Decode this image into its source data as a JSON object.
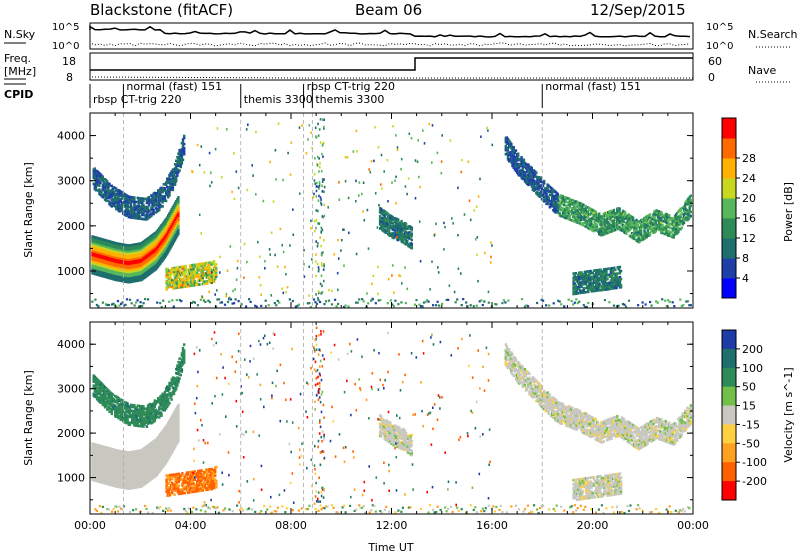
{
  "header": {
    "station": "Blackstone (fitACF)",
    "beam": "Beam 06",
    "date": "12/Sep/2015"
  },
  "top_panels": {
    "nsky_label": "N.Sky",
    "nsky_ticks": [
      "10^5",
      "10^0"
    ],
    "nsearch_label": "N.Search",
    "freq_label": "Freq.",
    "freq_unit": "[MHz]",
    "freq_ticks": [
      "18",
      "8"
    ],
    "nave_label": "Nave",
    "nave_ticks": [
      "60",
      "0"
    ],
    "cpid_label": "CPID",
    "cpid_segments": [
      {
        "label": "rbsp CT-trig 220",
        "start": 0.0
      },
      {
        "label": "normal (fast) 151",
        "start": 1.33
      },
      {
        "label": "themis 3300",
        "start": 6.0
      },
      {
        "label": "rbsp CT-trig 220",
        "start": 8.5
      },
      {
        "label": "themis 3300",
        "start": 8.85
      },
      {
        "label": "normal (fast) 151",
        "start": 18.0
      }
    ]
  },
  "chart_data": [
    {
      "type": "heatmap",
      "title": "",
      "xlabel": "",
      "ylabel": "Slant Range [km]",
      "xlim": [
        0,
        24
      ],
      "ylim": [
        180,
        4500
      ],
      "yticks": [
        "1000",
        "2000",
        "3000",
        "4000"
      ],
      "colorbar": {
        "label": "Power [dB]",
        "ticks": [
          "4",
          "8",
          "12",
          "16",
          "20",
          "24",
          "28"
        ],
        "range": [
          0,
          30
        ],
        "colors": [
          "#0000ff",
          "#1f3fa8",
          "#1e6e6e",
          "#2e8b57",
          "#57b75a",
          "#c8d820",
          "#ffb000",
          "#ff6a00",
          "#ff0000"
        ]
      },
      "features": [
        {
          "name": "band",
          "t": [
            0.05,
            1.0,
            1.5,
            2.0,
            2.6,
            3.0,
            3.5
          ],
          "r": [
            1400,
            1250,
            1200,
            1250,
            1500,
            1800,
            2300
          ],
          "value": 26
        },
        {
          "name": "upper-arc",
          "t": [
            0.1,
            0.8,
            1.5,
            2.2,
            2.8,
            3.3,
            3.7
          ],
          "r": [
            3100,
            2700,
            2450,
            2400,
            2650,
            3100,
            3800
          ],
          "value": 8
        },
        {
          "name": "patch-4h",
          "t": [
            3.0,
            3.6,
            4.2,
            4.8,
            5.0
          ],
          "r": [
            850,
            900,
            950,
            1000,
            1050
          ],
          "value": 20
        },
        {
          "name": "patch-12h",
          "t": [
            11.5,
            12.0,
            12.4,
            12.8
          ],
          "r": [
            2200,
            2000,
            1900,
            1750
          ],
          "value": 10
        },
        {
          "name": "arc-17h",
          "t": [
            16.5,
            17.0,
            17.6,
            18.2,
            18.6
          ],
          "r": [
            3800,
            3400,
            3050,
            2700,
            2500
          ],
          "value": 7
        },
        {
          "name": "tail-21h",
          "t": [
            18.6,
            19.5,
            20.3,
            21.0,
            21.8,
            22.5,
            23.2,
            23.9
          ],
          "r": [
            2500,
            2300,
            2050,
            2200,
            1900,
            2150,
            2000,
            2500
          ],
          "value": 14
        },
        {
          "name": "patch-20h",
          "t": [
            19.2,
            19.8,
            20.5,
            21.1
          ],
          "r": [
            750,
            800,
            850,
            900
          ],
          "value": 10
        }
      ]
    },
    {
      "type": "heatmap",
      "title": "",
      "xlabel": "Time UT",
      "ylabel": "Slant Range [km]",
      "xlim": [
        0,
        24
      ],
      "ylim": [
        180,
        4500
      ],
      "xticks": [
        "00:00",
        "04:00",
        "08:00",
        "12:00",
        "16:00",
        "20:00",
        "00:00"
      ],
      "yticks": [
        "1000",
        "2000",
        "3000",
        "4000"
      ],
      "colorbar": {
        "label": "Velocity [m s^-1]",
        "ticks": [
          "200",
          "100",
          "50",
          "15",
          "-15",
          "-50",
          "-100",
          "-200"
        ],
        "colors": [
          "#1e3ca8",
          "#1f6e6e",
          "#2e8b57",
          "#72c04a",
          "#c8c8c0",
          "#ffd040",
          "#ffa020",
          "#ff6000",
          "#ff0000"
        ]
      },
      "features": [
        {
          "name": "ground-band",
          "t": [
            0.05,
            1.0,
            1.5,
            2.0,
            2.6,
            3.0,
            3.5
          ],
          "r": [
            1400,
            1250,
            1200,
            1250,
            1500,
            1800,
            2300
          ],
          "value": 0
        },
        {
          "name": "upper-arc",
          "t": [
            0.1,
            0.8,
            1.5,
            2.2,
            2.8,
            3.3,
            3.7
          ],
          "r": [
            3100,
            2700,
            2450,
            2400,
            2650,
            3100,
            3800
          ],
          "value": 60
        },
        {
          "name": "patch-4h",
          "t": [
            3.0,
            3.6,
            4.2,
            4.8,
            5.0
          ],
          "r": [
            850,
            900,
            950,
            1000,
            1050
          ],
          "value": -80
        },
        {
          "name": "patch-12h",
          "t": [
            11.5,
            12.0,
            12.4,
            12.8
          ],
          "r": [
            2200,
            2000,
            1900,
            1750
          ],
          "value": 0
        },
        {
          "name": "arc-17h",
          "t": [
            16.5,
            17.0,
            17.6,
            18.2,
            18.6
          ],
          "r": [
            3800,
            3400,
            3050,
            2700,
            2500
          ],
          "value": 0
        },
        {
          "name": "tail-21h",
          "t": [
            18.6,
            19.5,
            20.3,
            21.0,
            21.8,
            22.5,
            23.2,
            23.9
          ],
          "r": [
            2500,
            2300,
            2050,
            2200,
            1900,
            2150,
            2000,
            2500
          ],
          "value": 0
        },
        {
          "name": "patch-20h",
          "t": [
            19.2,
            19.8,
            20.5,
            21.1
          ],
          "r": [
            750,
            800,
            850,
            900
          ],
          "value": 0
        }
      ]
    }
  ]
}
